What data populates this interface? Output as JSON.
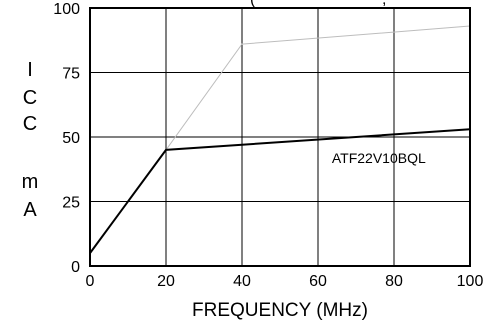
{
  "chart_data": {
    "type": "line",
    "title_fragment": "(",
    "title_fragment_right": ", ",
    "xlabel": "FREQUENCY (MHz)",
    "ylabel_chars": [
      "I",
      "C",
      "C",
      "m",
      "A"
    ],
    "xlim": [
      0,
      100
    ],
    "ylim": [
      0,
      100
    ],
    "x_ticks": [
      "0",
      "20",
      "40",
      "60",
      "80",
      "100"
    ],
    "y_ticks": [
      "0",
      "25",
      "50",
      "75",
      "100"
    ],
    "grid": true,
    "series": [
      {
        "name": "ATF22V10BQL",
        "color": "#000000",
        "x": [
          0,
          20,
          100
        ],
        "y": [
          5,
          45,
          53
        ]
      },
      {
        "name": "",
        "color": "#bdbdbd",
        "x": [
          0,
          20,
          40,
          100
        ],
        "y": [
          5,
          45,
          86,
          93
        ]
      }
    ],
    "annotations": [
      {
        "text": "ATF22V10BQL",
        "x": 76,
        "y": 40
      }
    ]
  }
}
